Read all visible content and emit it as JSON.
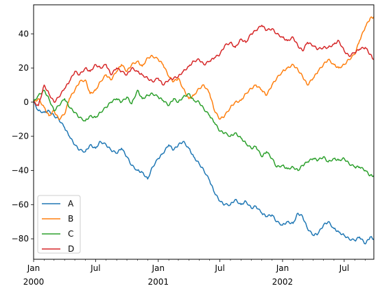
{
  "chart_data": {
    "type": "line",
    "title": "",
    "xlabel": "",
    "ylabel": "",
    "ylim": [
      -92,
      57
    ],
    "xlim": [
      "2000-01-01",
      "2002-09-26"
    ],
    "grid": false,
    "legend_position": "lower-left",
    "y_ticks": [
      -80,
      -60,
      -40,
      -20,
      0,
      20,
      40
    ],
    "y_tick_labels": [
      "−80",
      "−60",
      "−40",
      "−20",
      "0",
      "20",
      "40"
    ],
    "x_ticks": [
      {
        "date": "2000-01-01",
        "label": "Jan",
        "year": "2000"
      },
      {
        "date": "2000-07-01",
        "label": "Jul",
        "year": ""
      },
      {
        "date": "2001-01-01",
        "label": "Jan",
        "year": "2001"
      },
      {
        "date": "2001-07-01",
        "label": "Jul",
        "year": ""
      },
      {
        "date": "2002-01-01",
        "label": "Jan",
        "year": "2002"
      },
      {
        "date": "2002-07-01",
        "label": "Jul",
        "year": ""
      }
    ],
    "series": [
      {
        "name": "A",
        "color": "#1f77b4",
        "points": [
          [
            "2000-01-01",
            0
          ],
          [
            "2000-01-15",
            -5
          ],
          [
            "2000-02-01",
            -6
          ],
          [
            "2000-02-15",
            -5
          ],
          [
            "2000-03-01",
            -8
          ],
          [
            "2000-03-15",
            -10
          ],
          [
            "2000-04-01",
            -15
          ],
          [
            "2000-04-15",
            -20
          ],
          [
            "2000-05-01",
            -25
          ],
          [
            "2000-05-15",
            -28
          ],
          [
            "2000-06-01",
            -29
          ],
          [
            "2000-06-15",
            -25
          ],
          [
            "2000-07-01",
            -27
          ],
          [
            "2000-07-15",
            -23
          ],
          [
            "2000-08-01",
            -25
          ],
          [
            "2000-08-15",
            -28
          ],
          [
            "2000-09-01",
            -30
          ],
          [
            "2000-09-15",
            -27
          ],
          [
            "2000-10-01",
            -32
          ],
          [
            "2000-10-15",
            -37
          ],
          [
            "2000-11-01",
            -40
          ],
          [
            "2000-11-15",
            -41
          ],
          [
            "2000-12-01",
            -45
          ],
          [
            "2000-12-15",
            -38
          ],
          [
            "2001-01-01",
            -33
          ],
          [
            "2001-01-15",
            -30
          ],
          [
            "2001-02-01",
            -25
          ],
          [
            "2001-02-15",
            -28
          ],
          [
            "2001-03-01",
            -25
          ],
          [
            "2001-03-15",
            -23
          ],
          [
            "2001-04-01",
            -27
          ],
          [
            "2001-04-15",
            -32
          ],
          [
            "2001-05-01",
            -36
          ],
          [
            "2001-05-15",
            -40
          ],
          [
            "2001-06-01",
            -46
          ],
          [
            "2001-06-15",
            -53
          ],
          [
            "2001-07-01",
            -58
          ],
          [
            "2001-07-15",
            -60
          ],
          [
            "2001-08-01",
            -60
          ],
          [
            "2001-08-15",
            -57
          ],
          [
            "2001-09-01",
            -60
          ],
          [
            "2001-09-15",
            -58
          ],
          [
            "2001-10-01",
            -62
          ],
          [
            "2001-10-15",
            -61
          ],
          [
            "2001-11-01",
            -65
          ],
          [
            "2001-11-15",
            -67
          ],
          [
            "2001-12-01",
            -66
          ],
          [
            "2001-12-15",
            -70
          ],
          [
            "2002-01-01",
            -72
          ],
          [
            "2002-01-15",
            -70
          ],
          [
            "2002-02-01",
            -71
          ],
          [
            "2002-02-15",
            -65
          ],
          [
            "2002-03-01",
            -67
          ],
          [
            "2002-03-15",
            -74
          ],
          [
            "2002-04-01",
            -78
          ],
          [
            "2002-04-15",
            -77
          ],
          [
            "2002-05-01",
            -72
          ],
          [
            "2002-05-15",
            -70
          ],
          [
            "2002-06-01",
            -74
          ],
          [
            "2002-06-15",
            -76
          ],
          [
            "2002-07-01",
            -78
          ],
          [
            "2002-07-15",
            -80
          ],
          [
            "2002-08-01",
            -81
          ],
          [
            "2002-08-15",
            -79
          ],
          [
            "2002-09-01",
            -83
          ],
          [
            "2002-09-15",
            -79
          ],
          [
            "2002-09-26",
            -80
          ]
        ]
      },
      {
        "name": "B",
        "color": "#ff7f0e",
        "points": [
          [
            "2000-01-01",
            0
          ],
          [
            "2000-01-15",
            2
          ],
          [
            "2000-02-01",
            -3
          ],
          [
            "2000-02-15",
            -8
          ],
          [
            "2000-03-01",
            -5
          ],
          [
            "2000-03-15",
            -10
          ],
          [
            "2000-04-01",
            -7
          ],
          [
            "2000-04-15",
            2
          ],
          [
            "2000-05-01",
            7
          ],
          [
            "2000-05-15",
            12
          ],
          [
            "2000-06-01",
            13
          ],
          [
            "2000-06-15",
            5
          ],
          [
            "2000-07-01",
            7
          ],
          [
            "2000-07-15",
            12
          ],
          [
            "2000-08-01",
            16
          ],
          [
            "2000-08-15",
            13
          ],
          [
            "2000-09-01",
            18
          ],
          [
            "2000-09-15",
            22
          ],
          [
            "2000-10-01",
            18
          ],
          [
            "2000-10-15",
            22
          ],
          [
            "2000-11-01",
            24
          ],
          [
            "2000-11-15",
            21
          ],
          [
            "2000-12-01",
            26
          ],
          [
            "2000-12-15",
            27
          ],
          [
            "2001-01-01",
            25
          ],
          [
            "2001-01-15",
            22
          ],
          [
            "2001-02-01",
            15
          ],
          [
            "2001-02-15",
            12
          ],
          [
            "2001-03-01",
            14
          ],
          [
            "2001-03-15",
            8
          ],
          [
            "2001-04-01",
            2
          ],
          [
            "2001-04-15",
            4
          ],
          [
            "2001-05-01",
            8
          ],
          [
            "2001-05-15",
            10
          ],
          [
            "2001-06-01",
            5
          ],
          [
            "2001-06-15",
            -5
          ],
          [
            "2001-07-01",
            -10
          ],
          [
            "2001-07-15",
            -8
          ],
          [
            "2001-08-01",
            -3
          ],
          [
            "2001-08-15",
            0
          ],
          [
            "2001-09-01",
            1
          ],
          [
            "2001-09-15",
            5
          ],
          [
            "2001-10-01",
            8
          ],
          [
            "2001-10-15",
            10
          ],
          [
            "2001-11-01",
            7
          ],
          [
            "2001-11-15",
            4
          ],
          [
            "2001-12-01",
            10
          ],
          [
            "2001-12-15",
            14
          ],
          [
            "2002-01-01",
            18
          ],
          [
            "2002-01-15",
            20
          ],
          [
            "2002-02-01",
            22
          ],
          [
            "2002-02-15",
            19
          ],
          [
            "2002-03-01",
            15
          ],
          [
            "2002-03-15",
            10
          ],
          [
            "2002-04-01",
            14
          ],
          [
            "2002-04-15",
            18
          ],
          [
            "2002-05-01",
            22
          ],
          [
            "2002-05-15",
            25
          ],
          [
            "2002-06-01",
            22
          ],
          [
            "2002-06-15",
            20
          ],
          [
            "2002-07-01",
            22
          ],
          [
            "2002-07-15",
            25
          ],
          [
            "2002-08-01",
            28
          ],
          [
            "2002-08-15",
            36
          ],
          [
            "2002-09-01",
            44
          ],
          [
            "2002-09-15",
            49
          ],
          [
            "2002-09-26",
            50
          ]
        ]
      },
      {
        "name": "C",
        "color": "#2ca02c",
        "points": [
          [
            "2000-01-01",
            0
          ],
          [
            "2000-01-15",
            4
          ],
          [
            "2000-02-01",
            7
          ],
          [
            "2000-02-15",
            2
          ],
          [
            "2000-03-01",
            -5
          ],
          [
            "2000-03-15",
            -2
          ],
          [
            "2000-04-01",
            2
          ],
          [
            "2000-04-15",
            -3
          ],
          [
            "2000-05-01",
            -6
          ],
          [
            "2000-05-15",
            -9
          ],
          [
            "2000-06-01",
            -11
          ],
          [
            "2000-06-15",
            -8
          ],
          [
            "2000-07-01",
            -9
          ],
          [
            "2000-07-15",
            -6
          ],
          [
            "2000-08-01",
            -3
          ],
          [
            "2000-08-15",
            0
          ],
          [
            "2000-09-01",
            2
          ],
          [
            "2000-09-15",
            0
          ],
          [
            "2000-10-01",
            3
          ],
          [
            "2000-10-15",
            -1
          ],
          [
            "2000-11-01",
            7
          ],
          [
            "2000-11-15",
            2
          ],
          [
            "2000-12-01",
            4
          ],
          [
            "2000-12-15",
            5
          ],
          [
            "2001-01-01",
            3
          ],
          [
            "2001-01-15",
            1
          ],
          [
            "2001-02-01",
            -2
          ],
          [
            "2001-02-15",
            2
          ],
          [
            "2001-03-01",
            0
          ],
          [
            "2001-03-15",
            3
          ],
          [
            "2001-04-01",
            5
          ],
          [
            "2001-04-15",
            1
          ],
          [
            "2001-05-01",
            0
          ],
          [
            "2001-05-15",
            -4
          ],
          [
            "2001-06-01",
            -8
          ],
          [
            "2001-06-15",
            -12
          ],
          [
            "2001-07-01",
            -17
          ],
          [
            "2001-07-15",
            -18
          ],
          [
            "2001-08-01",
            -20
          ],
          [
            "2001-08-15",
            -18
          ],
          [
            "2001-09-01",
            -21
          ],
          [
            "2001-09-15",
            -24
          ],
          [
            "2001-10-01",
            -27
          ],
          [
            "2001-10-15",
            -26
          ],
          [
            "2001-11-01",
            -32
          ],
          [
            "2001-11-15",
            -29
          ],
          [
            "2001-12-01",
            -33
          ],
          [
            "2001-12-15",
            -38
          ],
          [
            "2002-01-01",
            -37
          ],
          [
            "2002-01-15",
            -39
          ],
          [
            "2002-02-01",
            -38
          ],
          [
            "2002-02-15",
            -40
          ],
          [
            "2002-03-01",
            -37
          ],
          [
            "2002-03-15",
            -35
          ],
          [
            "2002-04-01",
            -33
          ],
          [
            "2002-04-15",
            -34
          ],
          [
            "2002-05-01",
            -32
          ],
          [
            "2002-05-15",
            -35
          ],
          [
            "2002-06-01",
            -33
          ],
          [
            "2002-06-15",
            -34
          ],
          [
            "2002-07-01",
            -33
          ],
          [
            "2002-07-15",
            -36
          ],
          [
            "2002-08-01",
            -38
          ],
          [
            "2002-08-15",
            -38
          ],
          [
            "2002-09-01",
            -40
          ],
          [
            "2002-09-15",
            -43
          ],
          [
            "2002-09-26",
            -43
          ]
        ]
      },
      {
        "name": "D",
        "color": "#d62728",
        "points": [
          [
            "2000-01-01",
            0
          ],
          [
            "2000-01-15",
            -2
          ],
          [
            "2000-02-01",
            10
          ],
          [
            "2000-02-15",
            5
          ],
          [
            "2000-03-01",
            0
          ],
          [
            "2000-03-15",
            3
          ],
          [
            "2000-04-01",
            8
          ],
          [
            "2000-04-15",
            12
          ],
          [
            "2000-05-01",
            18
          ],
          [
            "2000-05-15",
            16
          ],
          [
            "2000-06-01",
            20
          ],
          [
            "2000-06-15",
            18
          ],
          [
            "2000-07-01",
            22
          ],
          [
            "2000-07-15",
            20
          ],
          [
            "2000-08-01",
            22
          ],
          [
            "2000-08-15",
            16
          ],
          [
            "2000-09-01",
            20
          ],
          [
            "2000-09-15",
            18
          ],
          [
            "2000-10-01",
            16
          ],
          [
            "2000-10-15",
            20
          ],
          [
            "2000-11-01",
            18
          ],
          [
            "2000-11-15",
            16
          ],
          [
            "2000-12-01",
            14
          ],
          [
            "2000-12-15",
            12
          ],
          [
            "2001-01-01",
            14
          ],
          [
            "2001-01-15",
            10
          ],
          [
            "2001-02-01",
            13
          ],
          [
            "2001-02-15",
            14
          ],
          [
            "2001-03-01",
            15
          ],
          [
            "2001-03-15",
            18
          ],
          [
            "2001-04-01",
            21
          ],
          [
            "2001-04-15",
            24
          ],
          [
            "2001-05-01",
            25
          ],
          [
            "2001-05-15",
            22
          ],
          [
            "2001-06-01",
            24
          ],
          [
            "2001-06-15",
            26
          ],
          [
            "2001-07-01",
            28
          ],
          [
            "2001-07-15",
            33
          ],
          [
            "2001-08-01",
            35
          ],
          [
            "2001-08-15",
            32
          ],
          [
            "2001-09-01",
            37
          ],
          [
            "2001-09-15",
            35
          ],
          [
            "2001-10-01",
            40
          ],
          [
            "2001-10-15",
            42
          ],
          [
            "2001-11-01",
            45
          ],
          [
            "2001-11-15",
            42
          ],
          [
            "2001-12-01",
            43
          ],
          [
            "2001-12-15",
            40
          ],
          [
            "2002-01-01",
            38
          ],
          [
            "2002-01-15",
            36
          ],
          [
            "2002-02-01",
            38
          ],
          [
            "2002-02-15",
            33
          ],
          [
            "2002-03-01",
            30
          ],
          [
            "2002-03-15",
            35
          ],
          [
            "2002-04-01",
            33
          ],
          [
            "2002-04-15",
            31
          ],
          [
            "2002-05-01",
            32
          ],
          [
            "2002-05-15",
            32
          ],
          [
            "2002-06-01",
            34
          ],
          [
            "2002-06-15",
            36
          ],
          [
            "2002-07-01",
            30
          ],
          [
            "2002-07-15",
            27
          ],
          [
            "2002-08-01",
            29
          ],
          [
            "2002-08-15",
            31
          ],
          [
            "2002-09-01",
            32
          ],
          [
            "2002-09-15",
            28
          ],
          [
            "2002-09-26",
            25
          ]
        ]
      }
    ]
  }
}
